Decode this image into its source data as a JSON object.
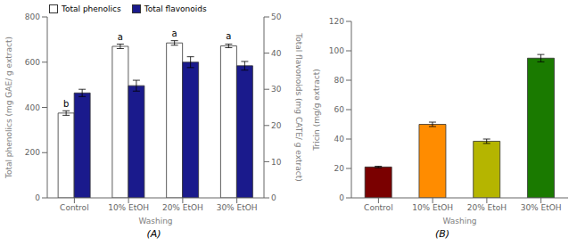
{
  "chart_data": [
    {
      "type": "bar",
      "caption": "(A)",
      "categories": [
        "Control",
        "10% EtOH",
        "20% EtOH",
        "30% EtOH"
      ],
      "series": [
        {
          "name": "Total phenolics",
          "color": "#ffffff",
          "values": [
            375,
            670,
            685,
            672
          ],
          "errors": [
            10,
            10,
            10,
            8
          ],
          "axis": "y"
        },
        {
          "name": "Total flavonoids",
          "color": "#1a1a8c",
          "values": [
            29,
            31,
            37.5,
            36.5
          ],
          "errors": [
            1.0,
            1.5,
            1.5,
            1.2
          ],
          "axis": "y2"
        }
      ],
      "annotations": [
        {
          "text": "b",
          "category": "Control",
          "series": "Total phenolics"
        },
        {
          "text": "a",
          "category": "10% EtOH",
          "series": "Total phenolics"
        },
        {
          "text": "a",
          "category": "20% EtOH",
          "series": "Total phenolics"
        },
        {
          "text": "a",
          "category": "30% EtOH",
          "series": "Total phenolics"
        }
      ],
      "xlabel": "Washing",
      "ylabel": "Total phenolics (mg GAE/ g extract)",
      "y2label": "Total flavonoids (mg CATE/ g extract)",
      "ylim": [
        0,
        800
      ],
      "yticks": [
        0,
        200,
        400,
        600,
        800
      ],
      "y2lim": [
        0,
        50
      ],
      "y2ticks": [
        0,
        10,
        20,
        30,
        40,
        50
      ],
      "legend": "upper left",
      "grid": false
    },
    {
      "type": "bar",
      "caption": "(B)",
      "categories": [
        "Control",
        "10% EtOH",
        "20% EtoH",
        "30% EtOH"
      ],
      "values": [
        21,
        50,
        38.5,
        95
      ],
      "errors": [
        0.5,
        1.5,
        1.5,
        2.5
      ],
      "colors": [
        "#7a0000",
        "#ff8c00",
        "#b5b500",
        "#1a7a00"
      ],
      "xlabel": "Washing",
      "ylabel": "Tricin (mg/g extract)",
      "ylim": [
        0,
        120
      ],
      "yticks": [
        0,
        20,
        40,
        60,
        80,
        100,
        120
      ],
      "grid": false
    }
  ]
}
